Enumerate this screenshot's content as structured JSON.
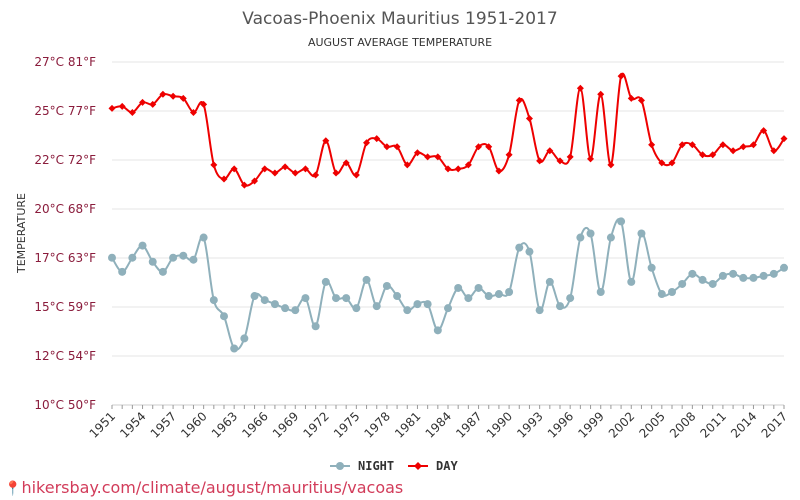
{
  "chart_data": {
    "type": "line",
    "title": "Vacoas-Phoenix Mauritius 1951-2017",
    "subtitle": "AUGUST AVERAGE TEMPERATURE",
    "ylabel": "TEMPERATURE",
    "ylim": [
      10,
      27
    ],
    "y_ticks": [
      {
        "value": 10,
        "label": "10°C 50°F"
      },
      {
        "value": 12.5,
        "label": "12°C 54°F"
      },
      {
        "value": 15,
        "label": "15°C 59°F"
      },
      {
        "value": 17.5,
        "label": "17°C 63°F"
      },
      {
        "value": 20,
        "label": "20°C 68°F"
      },
      {
        "value": 22.5,
        "label": "22°C 72°F"
      },
      {
        "value": 25,
        "label": "25°C 77°F"
      },
      {
        "value": 27.5,
        "label": "27°C 81°F"
      }
    ],
    "x_tick_labels": [
      "1951",
      "1954",
      "1957",
      "1960",
      "1963",
      "1966",
      "1969",
      "1972",
      "1975",
      "1978",
      "1981",
      "1984",
      "1987",
      "1990",
      "1993",
      "1996",
      "1999",
      "2002",
      "2005",
      "2008",
      "2011",
      "2014",
      "2017"
    ],
    "x_start": 1951,
    "x_end": 2017,
    "legend_position": "bottom",
    "grid": true,
    "series": [
      {
        "name": "NIGHT",
        "color": "#8fb0bb",
        "marker": "circle",
        "values": [
          17.3,
          16.6,
          17.3,
          17.9,
          17.1,
          16.6,
          17.3,
          17.4,
          17.2,
          18.3,
          15.2,
          14.4,
          12.8,
          13.3,
          15.4,
          15.2,
          15.0,
          14.8,
          14.7,
          15.3,
          13.9,
          16.1,
          15.3,
          15.3,
          14.8,
          16.2,
          14.9,
          15.9,
          15.4,
          14.7,
          15.0,
          15.0,
          13.7,
          14.8,
          15.8,
          15.3,
          15.8,
          15.4,
          15.5,
          15.6,
          17.8,
          17.6,
          14.7,
          16.1,
          14.9,
          15.3,
          18.3,
          18.5,
          15.6,
          18.3,
          19.1,
          16.1,
          18.5,
          16.8,
          15.5,
          15.6,
          16.0,
          16.5,
          16.2,
          16.0,
          16.4,
          16.5,
          16.3,
          16.3,
          16.4,
          16.5,
          16.8
        ]
      },
      {
        "name": "DAY",
        "color": "#ee0000",
        "marker": "diamond",
        "values": [
          24.7,
          24.8,
          24.5,
          25.0,
          24.9,
          25.4,
          25.3,
          25.2,
          24.5,
          24.9,
          21.9,
          21.2,
          21.7,
          20.9,
          21.1,
          21.7,
          21.5,
          21.8,
          21.5,
          21.7,
          21.4,
          23.1,
          21.5,
          22.0,
          21.4,
          23.0,
          23.2,
          22.8,
          22.8,
          21.9,
          22.5,
          22.3,
          22.3,
          21.7,
          21.7,
          21.9,
          22.8,
          22.8,
          21.6,
          22.4,
          25.1,
          24.2,
          22.1,
          22.6,
          22.1,
          22.3,
          25.7,
          22.2,
          25.4,
          21.9,
          26.3,
          25.2,
          25.1,
          22.9,
          22.0,
          22.0,
          22.9,
          22.9,
          22.4,
          22.4,
          22.9,
          22.6,
          22.8,
          22.9,
          23.6,
          22.6,
          23.2
        ]
      }
    ]
  },
  "footer": {
    "pin_icon": "location-pin-icon",
    "text": "hikersbay.com/climate/august/mauritius/vacoas"
  }
}
